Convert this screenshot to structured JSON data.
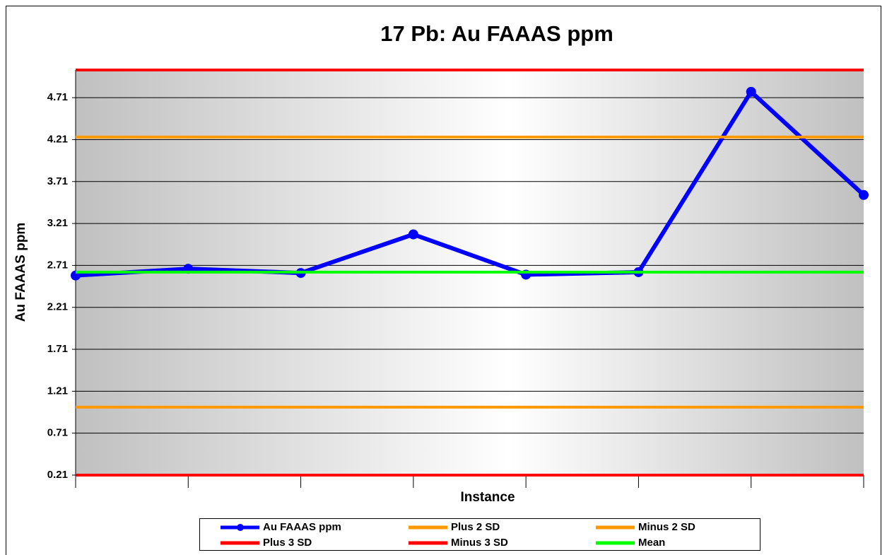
{
  "chart_data": {
    "type": "line",
    "title": "17 Pb: Au FAAAS ppm",
    "y_label": "Au FAAAS ppm",
    "x_label": "Instance",
    "categories": [
      null,
      null,
      null,
      null,
      null,
      null,
      null,
      null
    ],
    "series": [
      {
        "name": "Au FAAAS ppm",
        "color": "#0000ff",
        "markers": true,
        "values": [
          2.59,
          2.67,
          2.62,
          3.08,
          2.6,
          2.63,
          4.78,
          3.55
        ]
      },
      {
        "name": "Plus 2 SD",
        "color": "#ff9900",
        "values": [
          4.24,
          4.24,
          4.24,
          4.24,
          4.24,
          4.24,
          4.24,
          4.24
        ]
      },
      {
        "name": "Minus 2 SD",
        "color": "#ff9900",
        "values": [
          1.02,
          1.02,
          1.02,
          1.02,
          1.02,
          1.02,
          1.02,
          1.02
        ]
      },
      {
        "name": "Plus 3 SD",
        "color": "#ff0000",
        "values": [
          5.04,
          5.04,
          5.04,
          5.04,
          5.04,
          5.04,
          5.04,
          5.04
        ]
      },
      {
        "name": "Minus 3 SD",
        "color": "#ff0000",
        "values": [
          0.21,
          0.21,
          0.21,
          0.21,
          0.21,
          0.21,
          0.21,
          0.21
        ]
      },
      {
        "name": "Mean",
        "color": "#00ff00",
        "values": [
          2.63,
          2.63,
          2.63,
          2.63,
          2.63,
          2.63,
          2.63,
          2.63
        ]
      }
    ],
    "ylim": [
      0.21,
      5.04
    ],
    "yticks": [
      0.21,
      0.71,
      1.21,
      1.71,
      2.21,
      2.71,
      3.21,
      3.71,
      4.21,
      4.71
    ],
    "grid": true,
    "legend": "bottom"
  }
}
